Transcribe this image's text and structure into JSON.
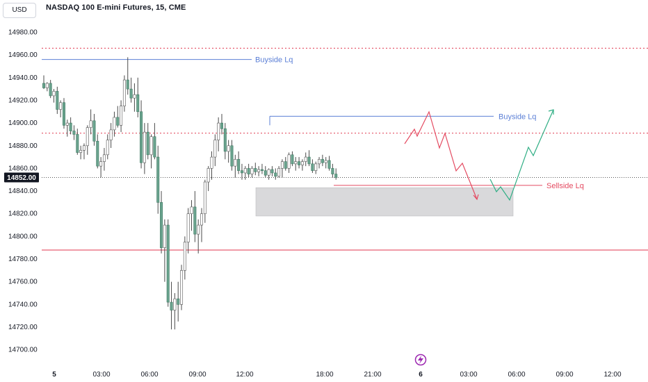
{
  "header": {
    "currency_button": "USD",
    "title": "NASDAQ 100 E-mini Futures, 15, CME"
  },
  "colors": {
    "up_candle": "#ffffff",
    "down_candle": "#6aa38e",
    "wick": "#4a4a4a",
    "buyside": "#5b7fd6",
    "sellside": "#e44a60",
    "level_dotted": "#e0364d",
    "level_solid": "#e0364d",
    "projection_green": "#2fae84",
    "zone_fill": "#d9d9db",
    "last_price_bg": "#131722"
  },
  "icons": {
    "bottom_logo": "lightning-logo-icon"
  },
  "chart_data": {
    "type": "candlestick",
    "title": "NASDAQ 100 E-mini Futures, 15, CME",
    "ylim": [
      14690,
      14995
    ],
    "y_ticks": [
      "14980.00",
      "14960.00",
      "14940.00",
      "14920.00",
      "14900.00",
      "14880.00",
      "14860.00",
      "14840.00",
      "14820.00",
      "14800.00",
      "14780.00",
      "14760.00",
      "14740.00",
      "14720.00",
      "14700.00"
    ],
    "x_ticks": [
      "5",
      "03:00",
      "06:00",
      "09:00",
      "12:00",
      "18:00",
      "21:00",
      "6",
      "03:00",
      "06:00",
      "09:00",
      "12:00"
    ],
    "last_price": "14852.00",
    "candles": [
      [
        14935,
        14942,
        14930,
        14931
      ],
      [
        14931,
        14936,
        14928,
        14935
      ],
      [
        14935,
        14938,
        14922,
        14924
      ],
      [
        14924,
        14930,
        14918,
        14928
      ],
      [
        14928,
        14932,
        14908,
        14912
      ],
      [
        14912,
        14920,
        14905,
        14918
      ],
      [
        14918,
        14922,
        14895,
        14898
      ],
      [
        14898,
        14903,
        14888,
        14900
      ],
      [
        14900,
        14905,
        14890,
        14893
      ],
      [
        14893,
        14898,
        14885,
        14890
      ],
      [
        14890,
        14895,
        14872,
        14874
      ],
      [
        14874,
        14880,
        14868,
        14876
      ],
      [
        14876,
        14882,
        14868,
        14880
      ],
      [
        14880,
        14898,
        14872,
        14896
      ],
      [
        14896,
        14912,
        14890,
        14902
      ],
      [
        14902,
        14908,
        14880,
        14884
      ],
      [
        14884,
        14890,
        14860,
        14862
      ],
      [
        14862,
        14870,
        14852,
        14866
      ],
      [
        14866,
        14878,
        14858,
        14872
      ],
      [
        14872,
        14890,
        14868,
        14885
      ],
      [
        14885,
        14900,
        14878,
        14894
      ],
      [
        14894,
        14910,
        14888,
        14905
      ],
      [
        14905,
        14915,
        14896,
        14898
      ],
      [
        14898,
        14920,
        14892,
        14915
      ],
      [
        14915,
        14942,
        14910,
        14938
      ],
      [
        14938,
        14958,
        14925,
        14930
      ],
      [
        14930,
        14940,
        14918,
        14922
      ],
      [
        14922,
        14935,
        14910,
        14925
      ],
      [
        14925,
        14940,
        14905,
        14910
      ],
      [
        14910,
        14920,
        14860,
        14865
      ],
      [
        14865,
        14900,
        14855,
        14892
      ],
      [
        14892,
        14900,
        14868,
        14872
      ],
      [
        14872,
        14890,
        14860,
        14888
      ],
      [
        14888,
        14900,
        14868,
        14870
      ],
      [
        14870,
        14880,
        14820,
        14830
      ],
      [
        14830,
        14840,
        14785,
        14790
      ],
      [
        14790,
        14815,
        14760,
        14810
      ],
      [
        14810,
        14815,
        14738,
        14742
      ],
      [
        14742,
        14760,
        14718,
        14735
      ],
      [
        14735,
        14750,
        14718,
        14745
      ],
      [
        14745,
        14760,
        14725,
        14740
      ],
      [
        14740,
        14775,
        14735,
        14770
      ],
      [
        14770,
        14800,
        14762,
        14795
      ],
      [
        14795,
        14825,
        14785,
        14820
      ],
      [
        14820,
        14832,
        14805,
        14826
      ],
      [
        14826,
        14840,
        14795,
        14802
      ],
      [
        14802,
        14815,
        14785,
        14810
      ],
      [
        14810,
        14825,
        14795,
        14820
      ],
      [
        14820,
        14850,
        14812,
        14848
      ],
      [
        14848,
        14862,
        14840,
        14860
      ],
      [
        14860,
        14875,
        14850,
        14870
      ],
      [
        14870,
        14890,
        14862,
        14885
      ],
      [
        14885,
        14905,
        14875,
        14900
      ],
      [
        14900,
        14908,
        14890,
        14895
      ],
      [
        14895,
        14900,
        14868,
        14875
      ],
      [
        14875,
        14885,
        14865,
        14880
      ],
      [
        14880,
        14885,
        14858,
        14862
      ],
      [
        14862,
        14872,
        14852,
        14868
      ],
      [
        14868,
        14875,
        14855,
        14858
      ],
      [
        14858,
        14864,
        14850,
        14856
      ],
      [
        14856,
        14862,
        14850,
        14860
      ],
      [
        14860,
        14864,
        14852,
        14855
      ],
      [
        14855,
        14862,
        14852,
        14860
      ],
      [
        14860,
        14865,
        14854,
        14857
      ],
      [
        14857,
        14862,
        14853,
        14859
      ],
      [
        14859,
        14864,
        14855,
        14858
      ],
      [
        14858,
        14862,
        14852,
        14854
      ],
      [
        14854,
        14860,
        14850,
        14859
      ],
      [
        14859,
        14862,
        14853,
        14856
      ],
      [
        14856,
        14860,
        14850,
        14853
      ],
      [
        14853,
        14862,
        14852,
        14860
      ],
      [
        14860,
        14868,
        14852,
        14866
      ],
      [
        14866,
        14870,
        14858,
        14860
      ],
      [
        14860,
        14874,
        14856,
        14872
      ],
      [
        14872,
        14875,
        14862,
        14864
      ],
      [
        14864,
        14870,
        14858,
        14866
      ],
      [
        14866,
        14870,
        14860,
        14863
      ],
      [
        14863,
        14868,
        14858,
        14866
      ],
      [
        14866,
        14874,
        14862,
        14870
      ],
      [
        14870,
        14876,
        14862,
        14864
      ],
      [
        14864,
        14868,
        14856,
        14858
      ],
      [
        14858,
        14866,
        14855,
        14864
      ],
      [
        14864,
        14870,
        14860,
        14868
      ],
      [
        14868,
        14872,
        14862,
        14865
      ],
      [
        14865,
        14870,
        14860,
        14867
      ],
      [
        14867,
        14871,
        14858,
        14860
      ],
      [
        14860,
        14864,
        14852,
        14855
      ],
      [
        14855,
        14860,
        14850,
        14852
      ]
    ],
    "levels": [
      {
        "type": "dotted",
        "value": 14966
      },
      {
        "type": "dotted",
        "value": 14891
      },
      {
        "type": "solid",
        "value": 14788
      },
      {
        "type": "last-price-dotted",
        "value": 14852
      }
    ],
    "annotations": [
      {
        "label": "Buyside Lq",
        "kind": "buyside",
        "value": 14956
      },
      {
        "label": "Buyside Lq",
        "kind": "buyside",
        "value": 14906
      },
      {
        "label": "Sellside Lq",
        "kind": "sellside",
        "value": 14845
      }
    ],
    "zone": {
      "top": 14843,
      "bottom": 14818
    }
  }
}
